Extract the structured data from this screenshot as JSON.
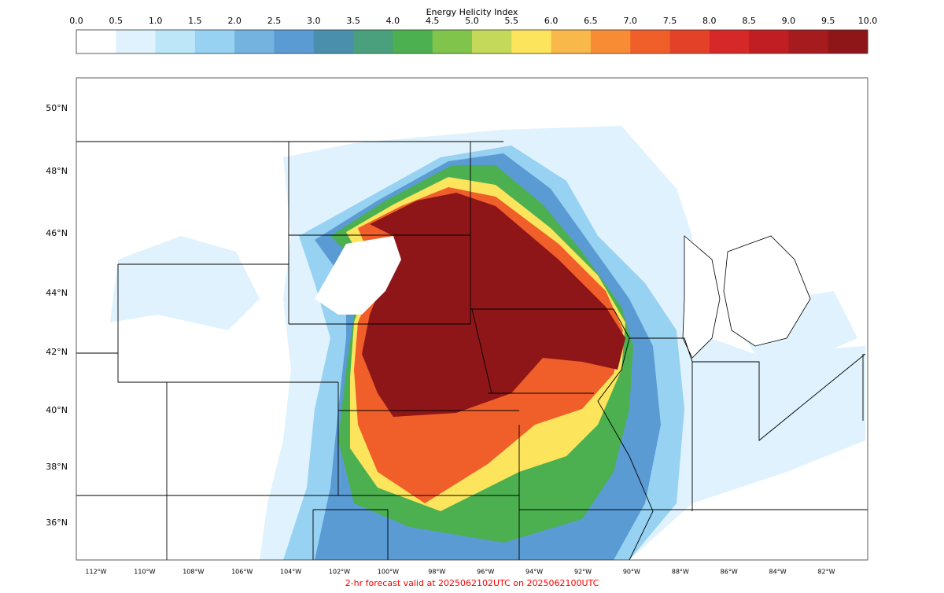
{
  "colorbar": {
    "title": "Energy Helicity Index",
    "ticks": [
      "0.0",
      "0.5",
      "1.0",
      "1.5",
      "2.0",
      "2.5",
      "3.0",
      "3.5",
      "4.0",
      "4.5",
      "5.0",
      "5.5",
      "6.0",
      "6.5",
      "7.0",
      "7.5",
      "8.0",
      "8.5",
      "9.0",
      "9.5",
      "10.0"
    ],
    "colors": [
      "#ffffff",
      "#dff2fd",
      "#bde6f9",
      "#97d2f2",
      "#74b2df",
      "#5b9bd4",
      "#4a90ac",
      "#4aa07c",
      "#4cb050",
      "#80c44c",
      "#c4d95a",
      "#fce45c",
      "#f9b84a",
      "#f78c34",
      "#f05f2a",
      "#e34228",
      "#d62828",
      "#c01e22",
      "#a51b1e",
      "#8f1618"
    ]
  },
  "map": {
    "lat_labels": [
      "50°N",
      "48°N",
      "46°N",
      "44°N",
      "42°N",
      "40°N",
      "38°N",
      "36°N"
    ],
    "lon_labels": [
      "112°W",
      "110°W",
      "108°W",
      "106°W",
      "104°W",
      "102°W",
      "100°W",
      "98°W",
      "96°W",
      "94°W",
      "92°W",
      "90°W",
      "88°W",
      "86°W",
      "84°W",
      "82°W"
    ]
  },
  "footer": "2-hr forecast valid at 2025062102UTC on 2025062100UTC"
}
